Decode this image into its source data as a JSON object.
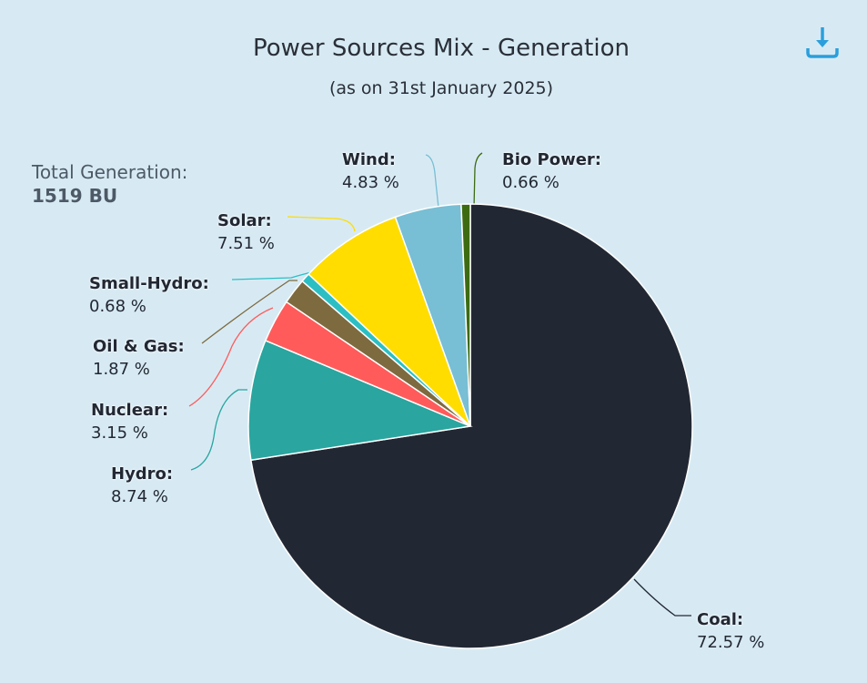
{
  "title": "Power Sources Mix - Generation",
  "subtitle": "(as on 31st January 2025)",
  "download_icon": "download-icon",
  "total": {
    "label": "Total Generation:",
    "value": "1519 BU"
  },
  "chart_data": {
    "type": "pie",
    "title": "Power Sources Mix - Generation",
    "subtitle": "(as on 31st January 2025)",
    "unit": "%",
    "start_angle": "top, clockwise",
    "slices": [
      {
        "name": "Coal",
        "value": 72.57,
        "label": "72.57 %",
        "color": "#222833"
      },
      {
        "name": "Hydro",
        "value": 8.74,
        "label": "8.74 %",
        "color": "#2aa59f"
      },
      {
        "name": "Nuclear",
        "value": 3.15,
        "label": "3.15 %",
        "color": "#ff5b5b"
      },
      {
        "name": "Oil & Gas",
        "value": 1.87,
        "label": "1.87 %",
        "color": "#7d6a3f"
      },
      {
        "name": "Small-Hydro",
        "value": 0.68,
        "label": "0.68 %",
        "color": "#2bbfc4"
      },
      {
        "name": "Solar",
        "value": 7.51,
        "label": "7.51 %",
        "color": "#ffdd00"
      },
      {
        "name": "Wind",
        "value": 4.83,
        "label": "4.83 %",
        "color": "#78bed4"
      },
      {
        "name": "Bio Power",
        "value": 0.66,
        "label": "0.66 %",
        "color": "#3d6b12"
      }
    ]
  }
}
